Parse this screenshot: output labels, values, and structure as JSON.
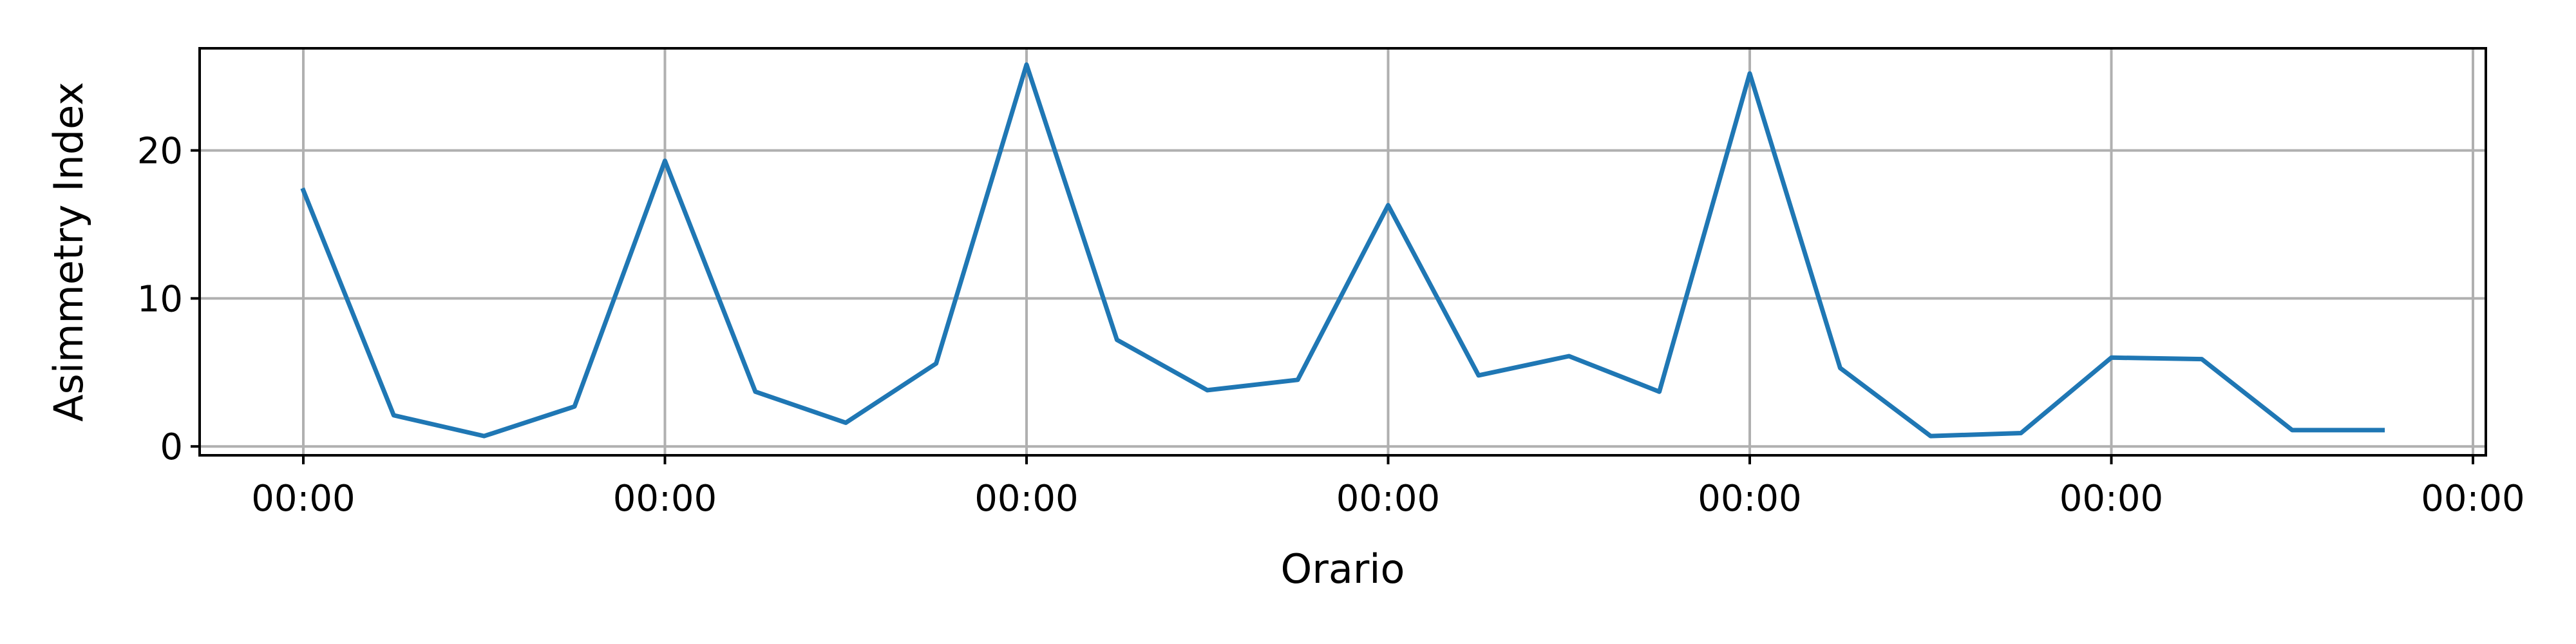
{
  "chart_data": {
    "type": "line",
    "title": "",
    "xlabel": "Orario",
    "ylabel": "Asimmetry Index",
    "x_tick_labels": [
      "00:00",
      "00:00",
      "00:00",
      "00:00",
      "00:00",
      "00:00",
      "00:00"
    ],
    "y_ticks": [
      0,
      10,
      20
    ],
    "ylim": [
      -0.6,
      26.9
    ],
    "grid": true,
    "series": [
      {
        "color": "#1f77b4",
        "values": [
          17.3,
          2.1,
          0.7,
          2.7,
          19.3,
          3.7,
          1.6,
          5.6,
          25.8,
          7.2,
          3.8,
          4.5,
          16.3,
          4.8,
          6.1,
          3.7,
          25.2,
          5.3,
          0.7,
          0.9,
          6.0,
          5.9,
          1.1,
          1.1
        ]
      }
    ]
  }
}
